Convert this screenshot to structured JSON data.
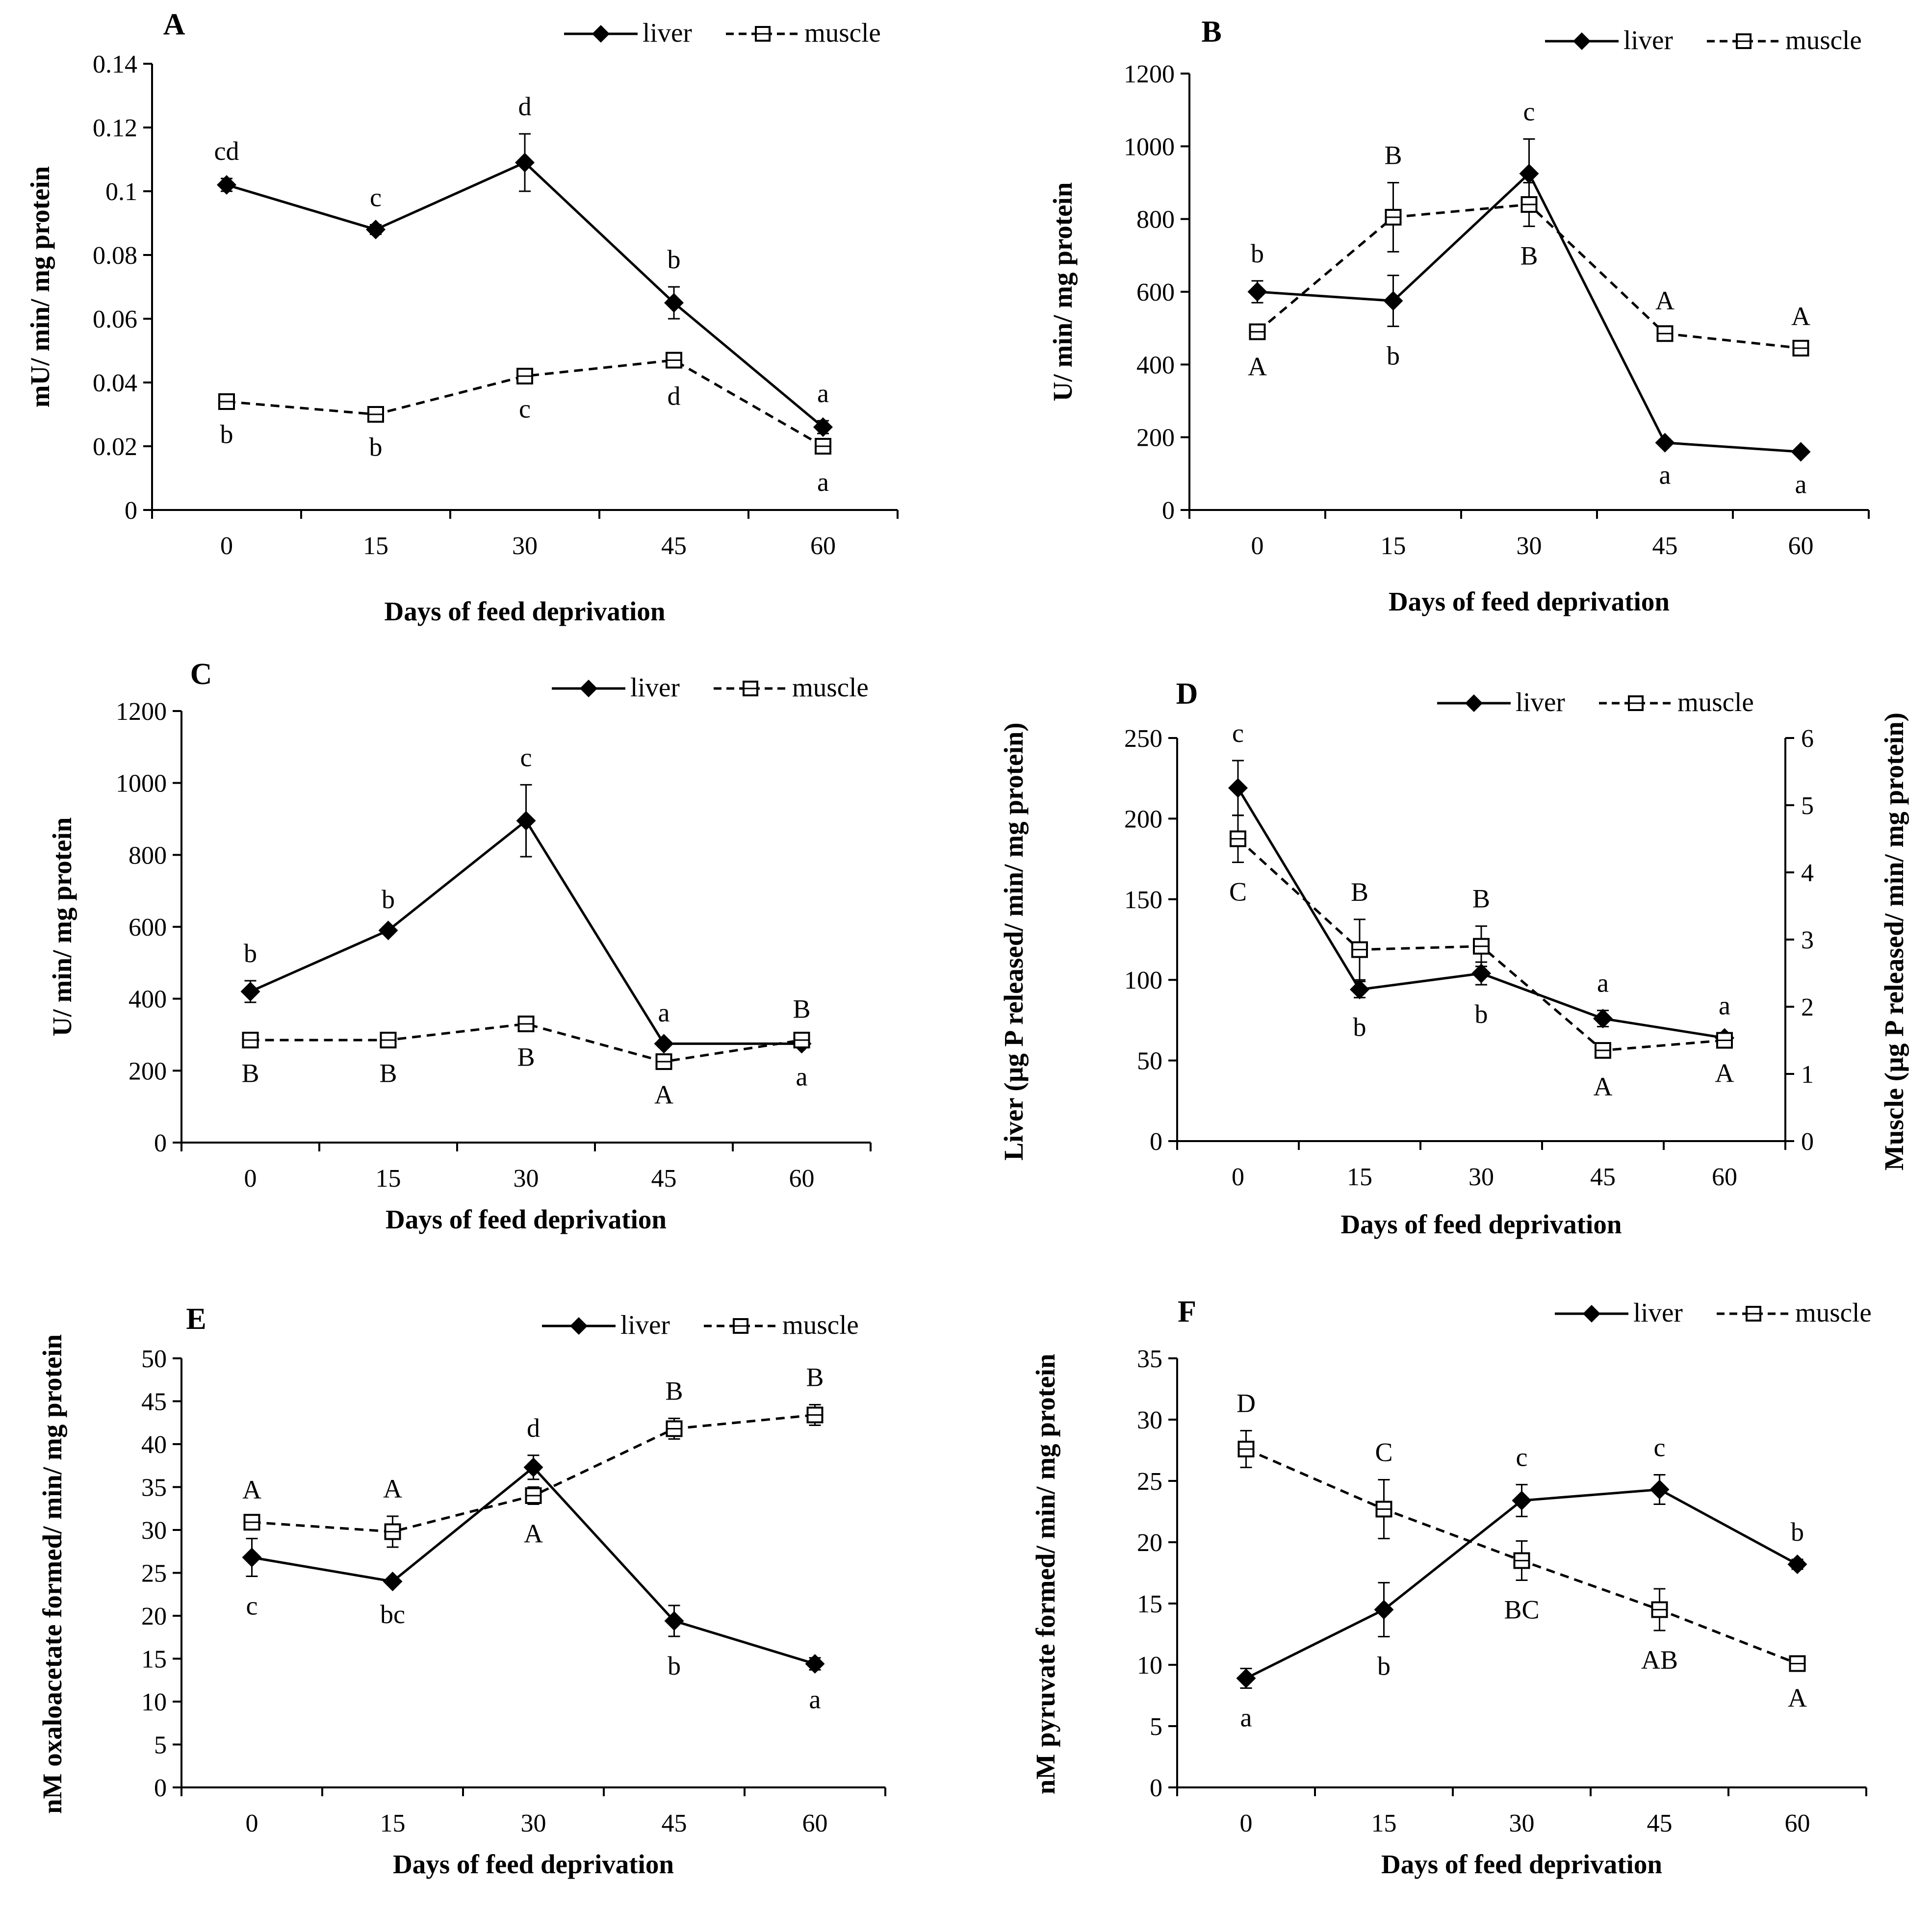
{
  "figure": {
    "legend": {
      "liver": "liver",
      "muscle": "muscle"
    },
    "xlabel": "Days of feed deprivation"
  },
  "chart_data": [
    {
      "panel": "A",
      "type": "line",
      "ylabel": "mU/ min/ mg protein",
      "x": [
        0,
        15,
        30,
        45,
        60
      ],
      "xticks": [
        "0",
        "15",
        "30",
        "45",
        "60"
      ],
      "ylim": [
        0,
        0.14
      ],
      "yticks": [
        "0",
        "0.02",
        "0.04",
        "0.06",
        "0.08",
        "0.1",
        "0.12",
        "0.14"
      ],
      "series": [
        {
          "name": "liver",
          "values": [
            0.102,
            0.088,
            0.109,
            0.065,
            0.026
          ],
          "errors": [
            0.002,
            0.0015,
            0.009,
            0.005,
            0.002
          ],
          "labels": [
            "cd",
            "c",
            "d",
            "b",
            "a"
          ]
        },
        {
          "name": "muscle",
          "values": [
            0.034,
            0.03,
            0.042,
            0.047,
            0.02
          ],
          "errors": [
            0.001,
            0.001,
            0.001,
            0.002,
            0.002
          ],
          "labels": [
            "b",
            "b",
            "c",
            "d",
            "a"
          ]
        }
      ]
    },
    {
      "panel": "B",
      "type": "line",
      "ylabel": "U/ min/ mg protein",
      "x": [
        0,
        15,
        30,
        45,
        60
      ],
      "xticks": [
        "0",
        "15",
        "30",
        "45",
        "60"
      ],
      "ylim": [
        0,
        1200
      ],
      "yticks": [
        "0",
        "200",
        "400",
        "600",
        "800",
        "1000",
        "1200"
      ],
      "series": [
        {
          "name": "liver",
          "values": [
            600,
            575,
            925,
            185,
            160
          ],
          "errors": [
            30,
            70,
            95,
            8,
            8
          ],
          "labels": [
            "b",
            "b",
            "c",
            "a",
            "a"
          ]
        },
        {
          "name": "muscle",
          "values": [
            490,
            805,
            840,
            485,
            445
          ],
          "errors": [
            15,
            95,
            60,
            15,
            12
          ],
          "labels": [
            "A",
            "B",
            "B",
            "A",
            "A"
          ]
        }
      ]
    },
    {
      "panel": "C",
      "type": "line",
      "ylabel": "U/ min/ mg protein",
      "x": [
        0,
        15,
        30,
        45,
        60
      ],
      "xticks": [
        "0",
        "15",
        "30",
        "45",
        "60"
      ],
      "ylim": [
        0,
        1200
      ],
      "yticks": [
        "0",
        "200",
        "400",
        "600",
        "800",
        "1000",
        "1200"
      ],
      "series": [
        {
          "name": "liver",
          "values": [
            420,
            590,
            895,
            275,
            275
          ],
          "errors": [
            30,
            10,
            100,
            10,
            10
          ],
          "labels": [
            "b",
            "b",
            "c",
            "a",
            "a"
          ]
        },
        {
          "name": "muscle",
          "values": [
            285,
            285,
            330,
            225,
            285
          ],
          "errors": [
            10,
            10,
            10,
            10,
            10
          ],
          "labels": [
            "B",
            "B",
            "B",
            "A",
            "B"
          ]
        }
      ]
    },
    {
      "panel": "D",
      "type": "line",
      "ylabel": "Liver (µg P released/ min/ mg protein)",
      "y2label": "Muscle (µg P released/ min/ mg protein)",
      "x": [
        0,
        15,
        30,
        45,
        60
      ],
      "xticks": [
        "0",
        "15",
        "30",
        "45",
        "60"
      ],
      "ylim": [
        0,
        250
      ],
      "yticks": [
        "0",
        "50",
        "100",
        "150",
        "200",
        "250"
      ],
      "y2lim": [
        0,
        6
      ],
      "y2ticks": [
        "0",
        "1",
        "2",
        "3",
        "4",
        "5",
        "6"
      ],
      "series": [
        {
          "name": "liver",
          "axis": "left",
          "values": [
            219,
            94,
            104,
            76,
            64
          ],
          "errors": [
            17,
            5,
            7,
            5,
            3
          ],
          "labels": [
            "c",
            "b",
            "b",
            "a",
            "a"
          ]
        },
        {
          "name": "muscle",
          "axis": "right",
          "values": [
            4.5,
            2.85,
            2.9,
            1.35,
            1.5
          ],
          "errors": [
            0.35,
            0.45,
            0.3,
            0.1,
            0.05
          ],
          "labels": [
            "C",
            "B",
            "B",
            "A",
            "A"
          ]
        }
      ]
    },
    {
      "panel": "E",
      "type": "line",
      "ylabel": "nM oxaloacetate formed/ min/ mg protein",
      "x": [
        0,
        15,
        30,
        45,
        60
      ],
      "xticks": [
        "0",
        "15",
        "30",
        "45",
        "60"
      ],
      "ylim": [
        0,
        50
      ],
      "yticks": [
        "0",
        "5",
        "10",
        "15",
        "20",
        "25",
        "30",
        "35",
        "40",
        "45",
        "50"
      ],
      "series": [
        {
          "name": "liver",
          "values": [
            26.8,
            24.0,
            37.3,
            19.4,
            14.4
          ],
          "errors": [
            2.2,
            0.4,
            1.4,
            1.8,
            0.7
          ],
          "labels": [
            "c",
            "bc",
            "d",
            "b",
            "a"
          ]
        },
        {
          "name": "muscle",
          "values": [
            30.9,
            29.8,
            34.0,
            41.8,
            43.4
          ],
          "errors": [
            0.6,
            1.8,
            1.0,
            1.2,
            1.2
          ],
          "labels": [
            "A",
            "A",
            "A",
            "B",
            "B"
          ]
        }
      ]
    },
    {
      "panel": "F",
      "type": "line",
      "ylabel": "nM pyruvate formed/ min/ mg protein",
      "x": [
        0,
        15,
        30,
        45,
        60
      ],
      "xticks": [
        "0",
        "15",
        "30",
        "45",
        "60"
      ],
      "ylim": [
        0,
        35
      ],
      "yticks": [
        "0",
        "5",
        "10",
        "15",
        "20",
        "25",
        "30",
        "35"
      ],
      "series": [
        {
          "name": "liver",
          "values": [
            8.9,
            14.5,
            23.4,
            24.3,
            18.2
          ],
          "errors": [
            0.8,
            2.2,
            1.3,
            1.2,
            0.4
          ],
          "labels": [
            "a",
            "b",
            "c",
            "c",
            "b"
          ]
        },
        {
          "name": "muscle",
          "values": [
            27.6,
            22.7,
            18.5,
            14.5,
            10.1
          ],
          "errors": [
            1.5,
            2.4,
            1.6,
            1.7,
            0.4
          ],
          "labels": [
            "D",
            "C",
            "BC",
            "AB",
            "A"
          ]
        }
      ]
    }
  ]
}
